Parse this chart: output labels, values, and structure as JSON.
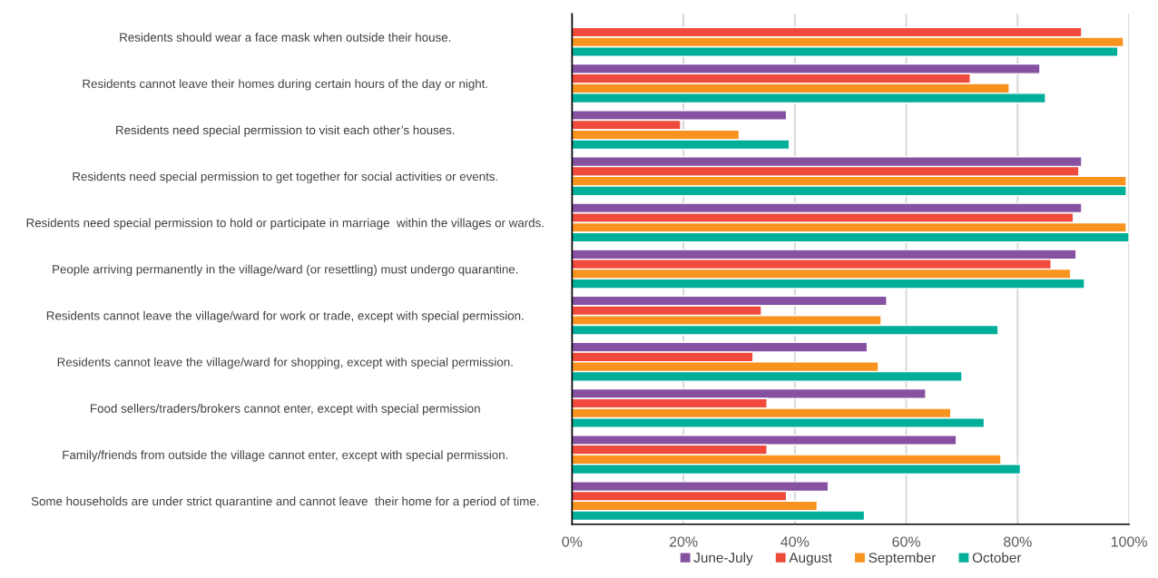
{
  "chart_data": {
    "type": "bar",
    "orientation": "horizontal",
    "categories": [
      "Residents should wear a face mask when outside their house.",
      "Residents cannot leave their homes during certain hours of the day or night.",
      "Residents need special permission to visit each other’s houses.",
      "Residents need special permission to get together for social activities or events.",
      "Residents need special permission to hold or participate in marriage  within the villages or wards.",
      "People arriving permanently in the village/ward (or resettling) must undergo quarantine.",
      "Residents cannot leave the village/ward for work or trade, except with special permission.",
      "Residents cannot leave the village/ward for shopping, except with special permission.",
      "Food sellers/traders/brokers cannot enter, except with special permission",
      "Family/friends from outside the village cannot enter, except with special permission.",
      "Some households are under strict quarantine and cannot leave  their home for a period of time."
    ],
    "series": [
      {
        "name": "June-July",
        "color": "#8651a1",
        "values": [
          null,
          84,
          38.5,
          91.5,
          91.5,
          90.5,
          56.5,
          53,
          63.5,
          69,
          46
        ]
      },
      {
        "name": "August",
        "color": "#ef4a3c",
        "values": [
          91.5,
          71.5,
          19.5,
          91,
          90,
          86,
          34,
          32.5,
          35,
          35,
          38.5
        ]
      },
      {
        "name": "September",
        "color": "#f7931e",
        "values": [
          99,
          78.5,
          30,
          99.5,
          99.5,
          89.5,
          55.5,
          55,
          68,
          77,
          44
        ]
      },
      {
        "name": "October",
        "color": "#00ae9a",
        "values": [
          98,
          85,
          39,
          99.5,
          100,
          92,
          76.5,
          70,
          74,
          80.5,
          52.5
        ]
      }
    ],
    "xlim": [
      0,
      100
    ],
    "xticks": [
      {
        "value": 0,
        "label": "0%"
      },
      {
        "value": 20,
        "label": "20%"
      },
      {
        "value": 40,
        "label": "40%"
      },
      {
        "value": 60,
        "label": "60%"
      },
      {
        "value": 80,
        "label": "80%"
      },
      {
        "value": 100,
        "label": "100%"
      }
    ],
    "grid": "x",
    "legend": "bottom"
  }
}
